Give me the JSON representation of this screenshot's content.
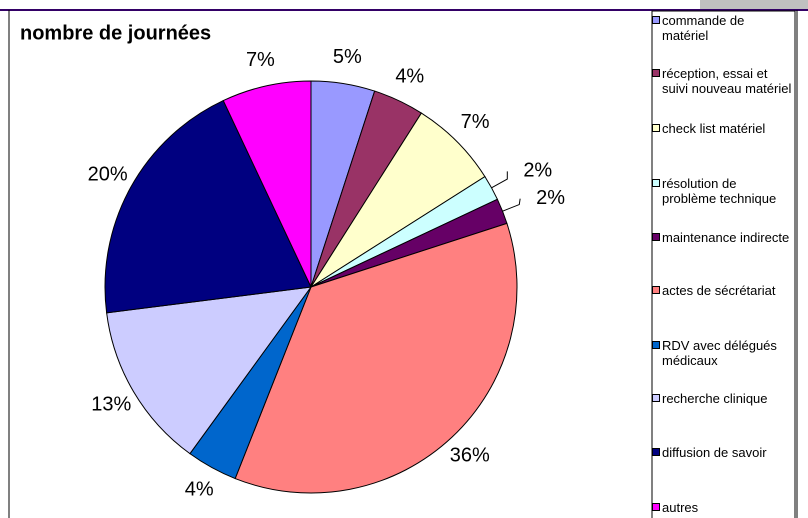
{
  "chart_data": {
    "type": "pie",
    "title": "nombre de journées",
    "categories": [
      "commande de matériel",
      "réception, essai et suivi nouveau matériel",
      "check list matériel",
      "résolution de problème technique",
      "maintenance indirecte",
      "actes de sécrétariat",
      "RDV avec délégués médicaux",
      "recherche clinique",
      "diffusion de savoir",
      "autres"
    ],
    "values": [
      5,
      4,
      7,
      2,
      2,
      36,
      4,
      13,
      20,
      7
    ],
    "value_labels": [
      "5%",
      "4%",
      "7%",
      "2%",
      "2%",
      "36%",
      "4%",
      "13%",
      "20%",
      "7%"
    ],
    "colors": [
      "#9999ff",
      "#993366",
      "#ffffcc",
      "#ccffff",
      "#660066",
      "#ff8080",
      "#0066cc",
      "#ccccff",
      "#000080",
      "#ff00ff"
    ],
    "legend": "right"
  }
}
